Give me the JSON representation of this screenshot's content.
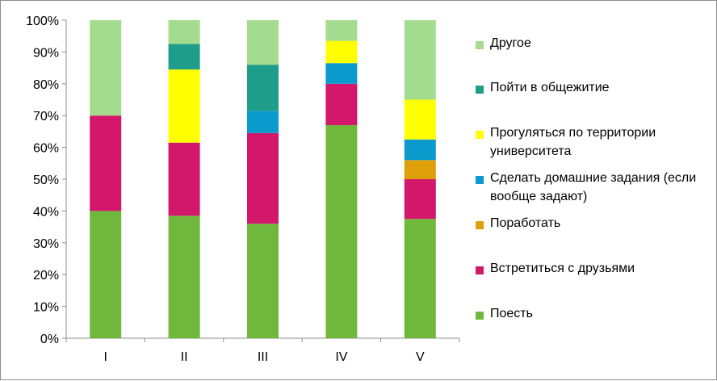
{
  "chart_data": {
    "type": "bar",
    "stacked": true,
    "percent_stacked": true,
    "categories": [
      "I",
      "II",
      "III",
      "IV",
      "V"
    ],
    "ylim": [
      0,
      100
    ],
    "yticks": [
      "0%",
      "10%",
      "20%",
      "30%",
      "40%",
      "50%",
      "60%",
      "70%",
      "80%",
      "90%",
      "100%"
    ],
    "grid": false,
    "legend_position": "right",
    "series": [
      {
        "name": "Поесть",
        "color": "#70b83c",
        "values": [
          40,
          38.5,
          36,
          67,
          37.5
        ]
      },
      {
        "name": "Встретиться с друзьями",
        "color": "#d3176b",
        "values": [
          30,
          23,
          28.5,
          13,
          12.5
        ]
      },
      {
        "name": "Поработать",
        "color": "#e0a00a",
        "values": [
          0,
          0,
          0,
          0,
          6
        ]
      },
      {
        "name": "Сделать домашние задания (если вообще задают)",
        "color": "#0a9acb",
        "values": [
          0,
          0,
          7,
          6.5,
          6.5
        ]
      },
      {
        "name": "Прогуляться по территории университета",
        "color": "#ffff00",
        "values": [
          0,
          23,
          0,
          7,
          12.5
        ]
      },
      {
        "name": "Пойти в общежитие",
        "color": "#1e9e8a",
        "values": [
          0,
          8,
          14.5,
          0,
          0
        ]
      },
      {
        "name": "Другое",
        "color": "#a3dc8e",
        "values": [
          30,
          7.5,
          14,
          6.5,
          25
        ]
      }
    ]
  }
}
